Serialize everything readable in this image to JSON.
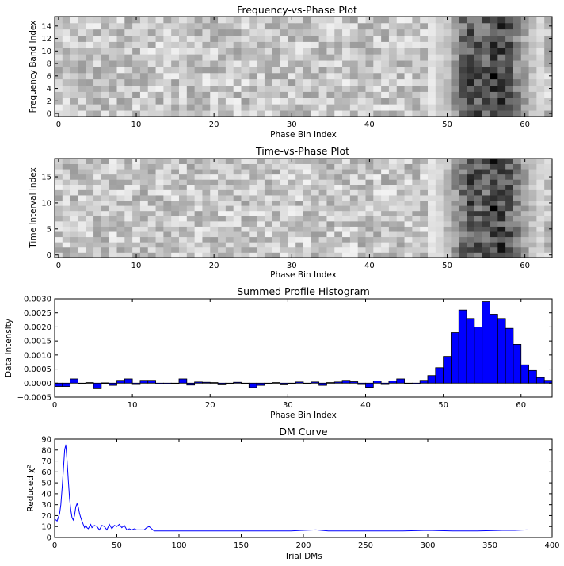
{
  "chart_data": [
    {
      "type": "heatmap",
      "title": "Frequency-vs-Phase Plot",
      "xlabel": "Phase Bin Index",
      "ylabel": "Frequency Band Index",
      "xlim": [
        -0.5,
        63.5
      ],
      "ylim": [
        -0.5,
        15.5
      ],
      "xticks": [
        0,
        10,
        20,
        30,
        40,
        50,
        60
      ],
      "yticks": [
        0,
        2,
        4,
        6,
        8,
        10,
        12,
        14
      ],
      "rows": 16,
      "cols": 64,
      "colormap": "gray_r",
      "pulse_phase_range": [
        50,
        62
      ],
      "seed": 11
    },
    {
      "type": "heatmap",
      "title": "Time-vs-Phase Plot",
      "xlabel": "Phase Bin Index",
      "ylabel": "Time Interval Index",
      "xlim": [
        -0.5,
        63.5
      ],
      "ylim": [
        -0.5,
        18.5
      ],
      "xticks": [
        0,
        10,
        20,
        30,
        40,
        50,
        60
      ],
      "yticks": [
        0,
        5,
        10,
        15
      ],
      "rows": 19,
      "cols": 64,
      "colormap": "gray_r",
      "pulse_phase_range": [
        50,
        62
      ],
      "seed": 29
    },
    {
      "type": "bar",
      "title": "Summed Profile Histogram",
      "xlabel": "Phase Bin Index",
      "ylabel": "Data Intensity",
      "xlim": [
        0,
        64
      ],
      "ylim": [
        -0.0005,
        0.003
      ],
      "xticks": [
        0,
        10,
        20,
        30,
        40,
        50,
        60
      ],
      "yticks": [
        -0.0005,
        0.0,
        0.0005,
        0.001,
        0.0015,
        0.002,
        0.0025,
        0.003
      ],
      "ytick_labels": [
        "−0.0005",
        "0.0000",
        "0.0005",
        "0.0010",
        "0.0015",
        "0.0020",
        "0.0025",
        "0.0030"
      ],
      "bar_color": "#0000ff",
      "x": [
        0,
        1,
        2,
        3,
        4,
        5,
        6,
        7,
        8,
        9,
        10,
        11,
        12,
        13,
        14,
        15,
        16,
        17,
        18,
        19,
        20,
        21,
        22,
        23,
        24,
        25,
        26,
        27,
        28,
        29,
        30,
        31,
        32,
        33,
        34,
        35,
        36,
        37,
        38,
        39,
        40,
        41,
        42,
        43,
        44,
        45,
        46,
        47,
        48,
        49,
        50,
        51,
        52,
        53,
        54,
        55,
        56,
        57,
        58,
        59,
        60,
        61,
        62,
        63
      ],
      "values": [
        -0.00012,
        -0.00012,
        0.00015,
        -2e-05,
        2e-05,
        -0.0002,
        1e-05,
        -8e-05,
        0.0001,
        0.00015,
        -5e-05,
        0.0001,
        0.0001,
        -3e-05,
        -3e-05,
        0.0,
        0.00015,
        -7e-05,
        4e-05,
        3e-05,
        2e-05,
        -6e-05,
        0.0,
        3e-05,
        0.0,
        -0.00016,
        -8e-05,
        0.0,
        2e-05,
        -6e-05,
        0.0,
        4e-05,
        -2e-05,
        4e-05,
        -8e-05,
        2e-05,
        4e-05,
        0.0001,
        5e-05,
        -5e-05,
        -0.00015,
        8e-05,
        -5e-05,
        8e-05,
        0.00015,
        0.0,
        -3e-05,
        0.0001,
        0.00027,
        0.00055,
        0.00095,
        0.0018,
        0.0026,
        0.0023,
        0.002,
        0.0029,
        0.00245,
        0.0023,
        0.00195,
        0.00138,
        0.00065,
        0.00045,
        0.0002,
        0.0001
      ]
    },
    {
      "type": "line",
      "title": "DM Curve",
      "xlabel": "Trial DMs",
      "ylabel": "Reduced χ²",
      "xlim": [
        0,
        400
      ],
      "ylim": [
        0,
        90
      ],
      "xticks": [
        0,
        50,
        100,
        150,
        200,
        250,
        300,
        350,
        400
      ],
      "yticks": [
        0,
        10,
        20,
        30,
        40,
        50,
        60,
        70,
        80,
        90
      ],
      "line_color": "#0000ff",
      "x": [
        0,
        2,
        4,
        5,
        6,
        7,
        8,
        9,
        10,
        11,
        12,
        13,
        14,
        15,
        16,
        17,
        18,
        19,
        20,
        21,
        22,
        23,
        24,
        25,
        26,
        27,
        28,
        29,
        30,
        32,
        34,
        36,
        38,
        40,
        42,
        44,
        46,
        48,
        50,
        52,
        54,
        56,
        58,
        60,
        62,
        64,
        66,
        68,
        70,
        72,
        74,
        76,
        78,
        80,
        85,
        90,
        100,
        120,
        150,
        170,
        180,
        190,
        200,
        210,
        220,
        240,
        260,
        280,
        300,
        320,
        340,
        360,
        370,
        380
      ],
      "values": [
        17,
        15,
        22,
        30,
        45,
        62,
        80,
        85,
        70,
        52,
        36,
        25,
        18,
        16,
        20,
        28,
        31,
        28,
        22,
        18,
        15,
        12,
        9,
        11,
        9,
        8,
        10,
        12,
        9,
        11,
        10,
        7,
        11,
        10,
        7,
        12,
        8,
        11,
        10,
        12,
        9,
        11,
        7,
        8,
        7,
        8,
        7,
        7,
        7,
        7,
        9,
        10,
        8,
        6,
        6,
        6,
        6,
        6,
        6,
        6,
        6,
        6,
        6.5,
        7,
        6,
        6,
        6,
        6,
        6.5,
        6,
        6,
        6.5,
        6.5,
        7
      ]
    }
  ]
}
